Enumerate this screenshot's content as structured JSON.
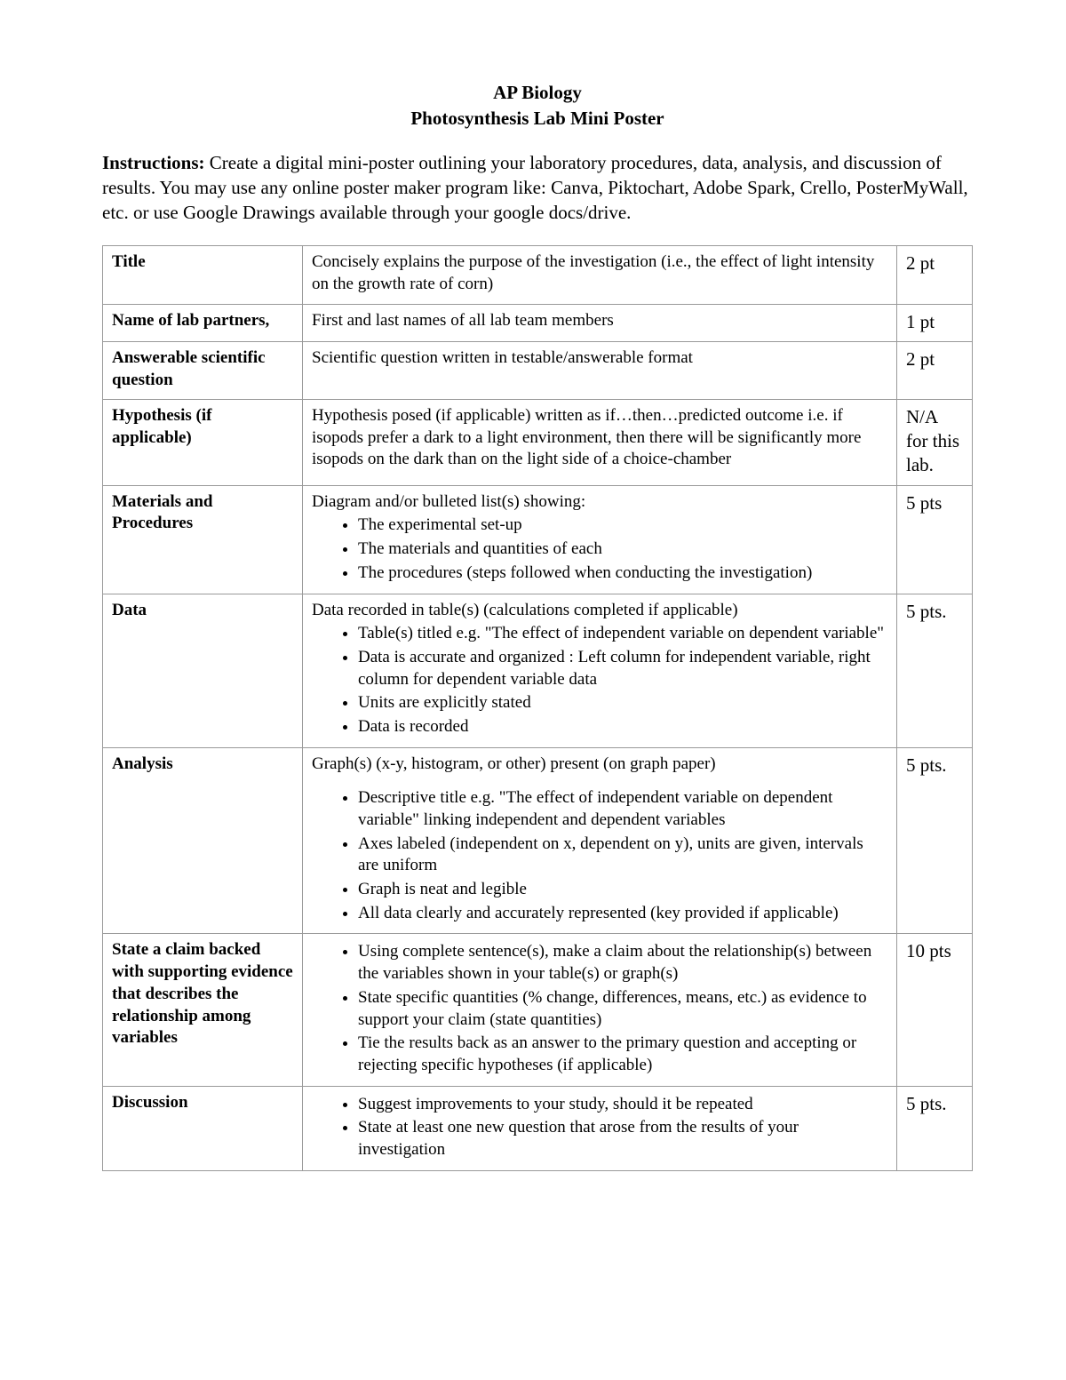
{
  "header": {
    "line1": "AP Biology",
    "line2": "Photosynthesis Lab Mini Poster"
  },
  "instructions": {
    "label": "Instructions:  ",
    "text": "Create a digital mini-poster outlining your laboratory procedures, data, analysis, and discussion of results.  You may use any online poster maker program like:  Canva, Piktochart, Adobe Spark, Crello, PosterMyWall, etc. or use Google Drawings available through your google docs/drive."
  },
  "rows": [
    {
      "label": "Title",
      "desc_lead": "Concisely explains the purpose of the investigation (i.e., the effect of light intensity on the growth rate of corn)",
      "bullets": [],
      "points": "2 pt"
    },
    {
      "label": "Name of lab partners,",
      "desc_lead": "First and last names of all lab team members",
      "bullets": [],
      "points": "1 pt"
    },
    {
      "label": "Answerable scientific question",
      "desc_lead": "Scientific question written in testable/answerable format",
      "bullets": [],
      "points": "2 pt"
    },
    {
      "label": "Hypothesis (if applicable)",
      "desc_lead": "Hypothesis posed (if applicable) written as if…then…predicted outcome i.e. if isopods prefer a dark to a light environment, then there will be significantly more isopods on the dark than on the light side of a choice-chamber",
      "bullets": [],
      "points": "N/A for this lab."
    },
    {
      "label": "Materials and Procedures",
      "desc_lead": "Diagram and/or bulleted list(s) showing:",
      "bullets": [
        "The experimental set-up",
        "The materials and quantities of each",
        "The procedures (steps followed when conducting the investigation)"
      ],
      "points": "5 pts"
    },
    {
      "label": "Data",
      "desc_lead": "Data recorded in table(s) (calculations completed if applicable)",
      "bullets": [
        "Table(s) titled e.g. \"The effect of independent variable on dependent variable\"",
        "Data is accurate and organized : Left column for independent variable, right column for dependent variable data",
        "Units are explicitly stated",
        "Data is recorded"
      ],
      "points": "5 pts."
    },
    {
      "label": "Analysis",
      "desc_lead": "Graph(s) (x-y, histogram, or other) present (on graph paper)",
      "gap_after_lead": true,
      "bullets": [
        "Descriptive title e.g. \"The effect of independent variable on dependent variable\" linking independent and dependent variables",
        "Axes labeled (independent on x, dependent on y), units are given, intervals are uniform",
        "Graph is neat and legible",
        "All data clearly and accurately represented (key provided if applicable)"
      ],
      "points": "5 pts."
    },
    {
      "label": "State a claim backed with supporting evidence that describes the relationship among variables",
      "desc_lead": "",
      "bullets": [
        "Using complete sentence(s), make a claim about the relationship(s) between the variables shown in your table(s) or graph(s)",
        "State specific quantities (% change, differences, means, etc.) as evidence to support your claim (state quantities)",
        "Tie the results back as an answer to the primary question and accepting or rejecting specific hypotheses (if applicable)"
      ],
      "points": "10 pts"
    },
    {
      "label": "Discussion",
      "desc_lead": "",
      "bullets": [
        "Suggest improvements to your study, should it be repeated",
        "State at least one new question that arose from the results of your investigation"
      ],
      "points": "5 pts."
    }
  ]
}
